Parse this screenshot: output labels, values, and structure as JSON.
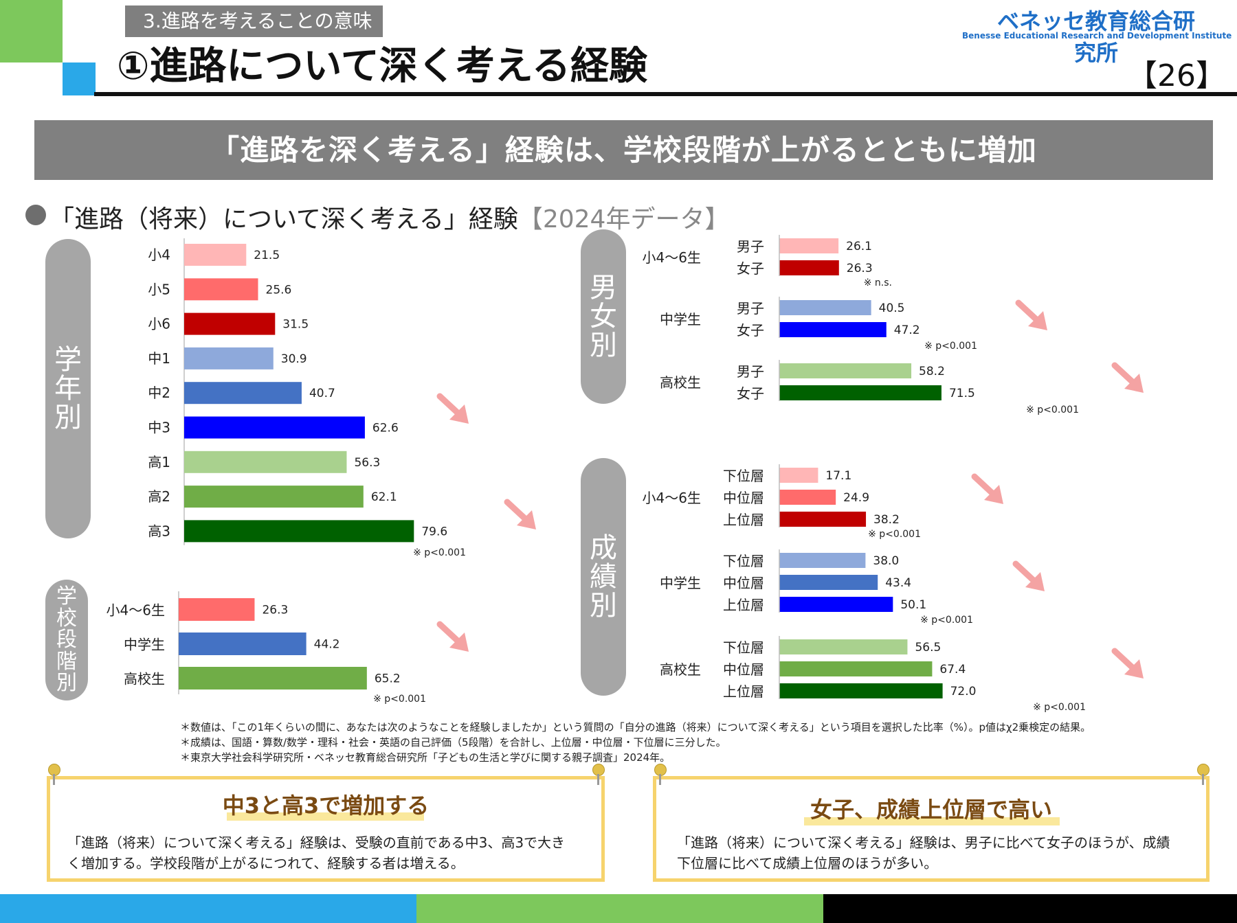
{
  "header": {
    "section_label": "3.進路を考えることの意味",
    "title": "①進路について深く考える経験",
    "logo_jp": "ベネッセ教育総合研究所",
    "logo_en": "Benesse  Educational Research and Development Institute",
    "page_number": "【26】"
  },
  "banner": "「進路を深く考える」経験は、学校段階が上がるとともに増加",
  "subheading": {
    "text": "「進路（将来）について深く考える」経験",
    "tag": "【2024年データ】"
  },
  "pills": {
    "grade": "学年別",
    "school": "学校段階別",
    "gender": "男女別",
    "achievement": "成績別"
  },
  "chart_data": [
    {
      "type": "bar",
      "orientation": "horizontal",
      "title": "学年別",
      "categories": [
        "小4",
        "小5",
        "小6",
        "中1",
        "中2",
        "中3",
        "高1",
        "高2",
        "高3"
      ],
      "values": [
        21.5,
        25.6,
        31.5,
        30.9,
        40.7,
        62.6,
        56.3,
        62.1,
        79.6
      ],
      "colors": [
        "#ffb6b6",
        "#ff6b6b",
        "#c00000",
        "#8ea9db",
        "#4472c4",
        "#0000ff",
        "#a9d18e",
        "#70ad47",
        "#006100"
      ],
      "note": "※ p<0.001",
      "unit": "%"
    },
    {
      "type": "bar",
      "orientation": "horizontal",
      "title": "学校段階別",
      "categories": [
        "小4～6生",
        "中学生",
        "高校生"
      ],
      "values": [
        26.3,
        44.2,
        65.2
      ],
      "colors": [
        "#ff6b6b",
        "#4472c4",
        "#70ad47"
      ],
      "note": "※ p<0.001",
      "unit": "%"
    },
    {
      "type": "bar",
      "orientation": "horizontal",
      "title": "男女別",
      "groups": [
        {
          "label": "小4～6生",
          "note": "※ n.s.",
          "series": [
            {
              "name": "男子",
              "value": 26.1,
              "color": "#ffb6b6"
            },
            {
              "name": "女子",
              "value": 26.3,
              "color": "#c00000"
            }
          ]
        },
        {
          "label": "中学生",
          "note": "※ p<0.001",
          "series": [
            {
              "name": "男子",
              "value": 40.5,
              "color": "#8ea9db"
            },
            {
              "name": "女子",
              "value": 47.2,
              "color": "#0000ff"
            }
          ]
        },
        {
          "label": "高校生",
          "note": "※ p<0.001",
          "series": [
            {
              "name": "男子",
              "value": 58.2,
              "color": "#a9d18e"
            },
            {
              "name": "女子",
              "value": 71.5,
              "color": "#006100"
            }
          ]
        }
      ],
      "unit": "%"
    },
    {
      "type": "bar",
      "orientation": "horizontal",
      "title": "成績別",
      "groups": [
        {
          "label": "小4～6生",
          "note": "※ p<0.001",
          "series": [
            {
              "name": "下位層",
              "value": 17.1,
              "color": "#ffb6b6"
            },
            {
              "name": "中位層",
              "value": 24.9,
              "color": "#ff6b6b"
            },
            {
              "name": "上位層",
              "value": 38.2,
              "color": "#c00000"
            }
          ]
        },
        {
          "label": "中学生",
          "note": "※ p<0.001",
          "series": [
            {
              "name": "下位層",
              "value": 38.0,
              "color": "#8ea9db"
            },
            {
              "name": "中位層",
              "value": 43.4,
              "color": "#4472c4"
            },
            {
              "name": "上位層",
              "value": 50.1,
              "color": "#0000ff"
            }
          ]
        },
        {
          "label": "高校生",
          "note": "※ p<0.001",
          "series": [
            {
              "name": "下位層",
              "value": 56.5,
              "color": "#a9d18e"
            },
            {
              "name": "中位層",
              "value": 67.4,
              "color": "#70ad47"
            },
            {
              "name": "上位層",
              "value": 72.0,
              "color": "#006100"
            }
          ]
        }
      ],
      "unit": "%"
    }
  ],
  "footnotes": [
    "＊数値は、「この1年くらいの間に、あなたは次のようなことを経験しましたか」という質問の「自分の進路（将来）について深く考える」という項目を選択した比率（%）。p値はχ2乗検定の結果。",
    "＊成績は、国語・算数/数学・理科・社会・英語の自己評価（5段階）を合計し、上位層・中位層・下位層に三分した。",
    "＊東京大学社会科学研究所・ベネッセ教育総合研究所「子どもの生活と学びに関する親子調査」2024年。"
  ],
  "boxes": [
    {
      "title": "中3と高3で増加する",
      "text": "「進路（将来）について深く考える」経験は、受験の直前である中3、高3で大きく増加する。学校段階が上がるにつれて、経験する者は増える。"
    },
    {
      "title": "女子、成績上位層で高い",
      "text": "「進路（将来）について深く考える」経験は、男子に比べて女子のほうが、成績下位層に比べて成績上位層のほうが多い。"
    }
  ],
  "colors": {
    "arrow": "#f4a3a3",
    "pill": "#a6a6a6",
    "box_border": "#f6d36d",
    "accent_blue": "#2aa8e8",
    "accent_green": "#7dc85c"
  }
}
